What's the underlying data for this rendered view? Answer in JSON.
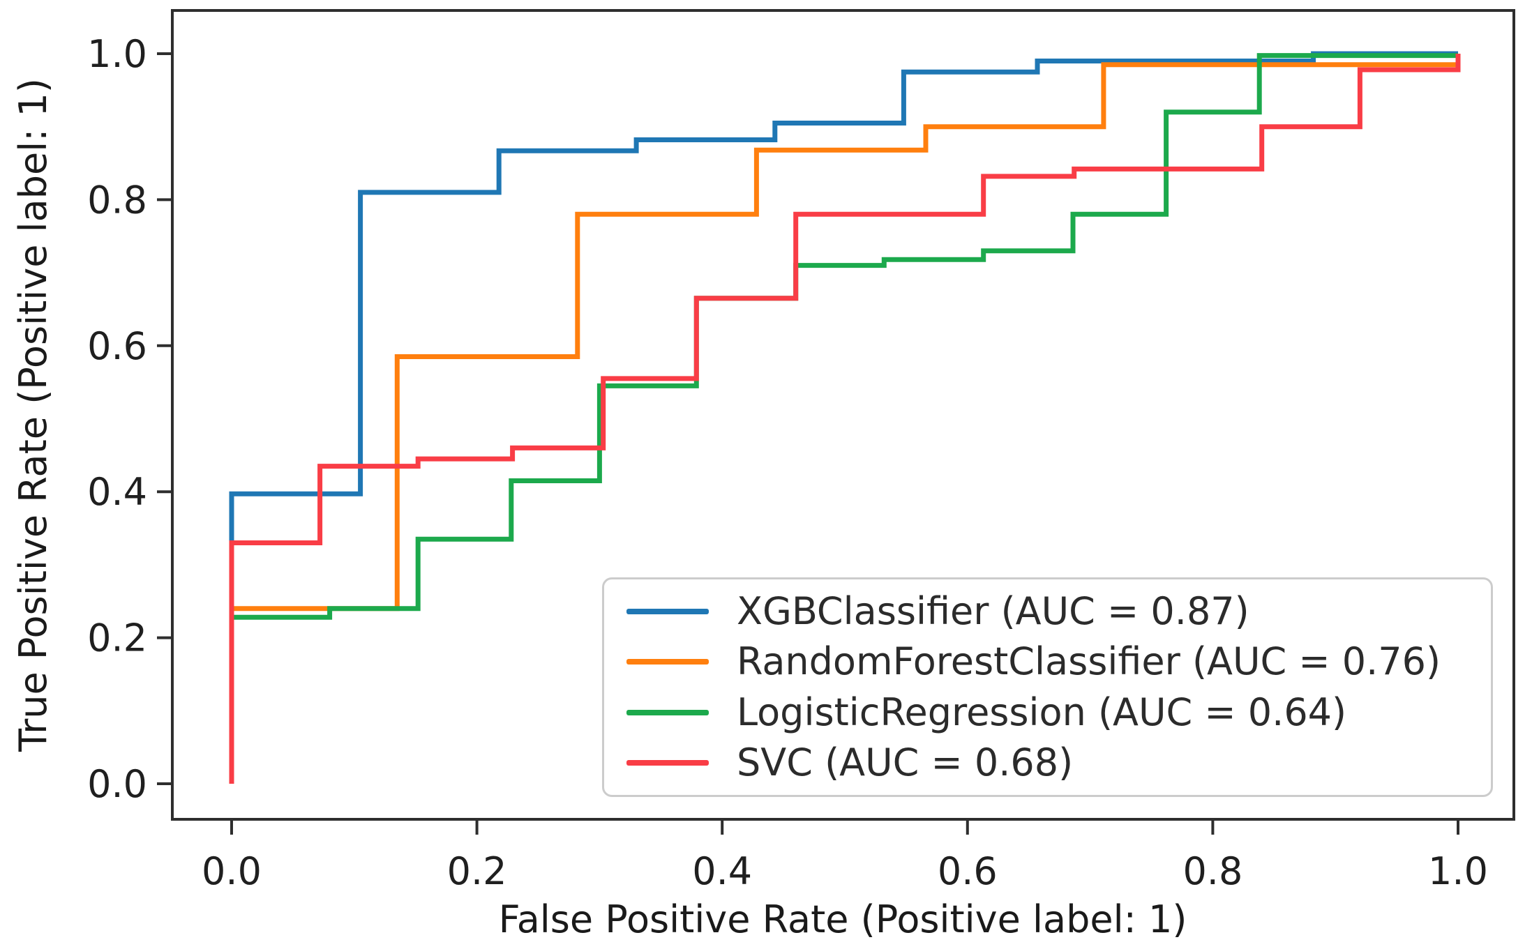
{
  "chart_data": {
    "type": "line",
    "subtype": "roc-step-curves",
    "title": "",
    "xlabel": "False Positive Rate (Positive label: 1)",
    "ylabel": "True Positive Rate (Positive label: 1)",
    "xlim": [
      -0.05,
      1.05
    ],
    "ylim": [
      -0.05,
      1.06
    ],
    "x_ticks": [
      0.0,
      0.2,
      0.4,
      0.6,
      0.8,
      1.0
    ],
    "y_ticks": [
      0.0,
      0.2,
      0.4,
      0.6,
      0.8,
      1.0
    ],
    "grid": false,
    "legend_position": "lower right",
    "frame_color": "#2e2e2e",
    "tick_label_color": "#1f1f1f",
    "series": [
      {
        "name": "XGBClassifier",
        "auc": 0.87,
        "label": "XGBClassifier (AUC = 0.87)",
        "color": "#1f77b4",
        "points": [
          [
            0,
            0
          ],
          [
            0,
            0.397
          ],
          [
            0.105,
            0.397
          ],
          [
            0.105,
            0.81
          ],
          [
            0.218,
            0.81
          ],
          [
            0.218,
            0.867
          ],
          [
            0.33,
            0.867
          ],
          [
            0.33,
            0.882
          ],
          [
            0.443,
            0.882
          ],
          [
            0.443,
            0.905
          ],
          [
            0.548,
            0.905
          ],
          [
            0.548,
            0.975
          ],
          [
            0.657,
            0.975
          ],
          [
            0.657,
            0.99
          ],
          [
            0.882,
            0.99
          ],
          [
            0.882,
            1.0
          ],
          [
            1.0,
            1.0
          ]
        ]
      },
      {
        "name": "RandomForestClassifier",
        "auc": 0.76,
        "label": "RandomForestClassifier (AUC = 0.76)",
        "color": "#ff7f0e",
        "points": [
          [
            0,
            0
          ],
          [
            0,
            0.24
          ],
          [
            0.135,
            0.24
          ],
          [
            0.135,
            0.585
          ],
          [
            0.282,
            0.585
          ],
          [
            0.282,
            0.78
          ],
          [
            0.428,
            0.78
          ],
          [
            0.428,
            0.868
          ],
          [
            0.566,
            0.868
          ],
          [
            0.566,
            0.9
          ],
          [
            0.711,
            0.9
          ],
          [
            0.711,
            0.985
          ],
          [
            1.0,
            0.985
          ],
          [
            1.0,
            1.0
          ]
        ]
      },
      {
        "name": "LogisticRegression",
        "auc": 0.64,
        "label": "LogisticRegression (AUC = 0.64)",
        "color": "#1ca94c",
        "points": [
          [
            0,
            0
          ],
          [
            0,
            0.228
          ],
          [
            0.08,
            0.228
          ],
          [
            0.08,
            0.24
          ],
          [
            0.152,
            0.24
          ],
          [
            0.152,
            0.335
          ],
          [
            0.228,
            0.335
          ],
          [
            0.228,
            0.415
          ],
          [
            0.3,
            0.415
          ],
          [
            0.3,
            0.545
          ],
          [
            0.379,
            0.545
          ],
          [
            0.379,
            0.665
          ],
          [
            0.46,
            0.665
          ],
          [
            0.46,
            0.71
          ],
          [
            0.532,
            0.71
          ],
          [
            0.532,
            0.718
          ],
          [
            0.613,
            0.718
          ],
          [
            0.613,
            0.73
          ],
          [
            0.686,
            0.73
          ],
          [
            0.686,
            0.78
          ],
          [
            0.762,
            0.78
          ],
          [
            0.762,
            0.92
          ],
          [
            0.838,
            0.92
          ],
          [
            0.838,
            0.9975
          ],
          [
            1.0,
            0.9975
          ],
          [
            1.0,
            1.0
          ]
        ]
      },
      {
        "name": "SVC",
        "auc": 0.68,
        "label": "SVC (AUC = 0.68)",
        "color": "#f93d46",
        "points": [
          [
            0,
            0
          ],
          [
            0,
            0.33
          ],
          [
            0.072,
            0.33
          ],
          [
            0.072,
            0.435
          ],
          [
            0.152,
            0.435
          ],
          [
            0.152,
            0.445
          ],
          [
            0.229,
            0.445
          ],
          [
            0.229,
            0.46
          ],
          [
            0.303,
            0.46
          ],
          [
            0.303,
            0.555
          ],
          [
            0.379,
            0.555
          ],
          [
            0.379,
            0.665
          ],
          [
            0.46,
            0.665
          ],
          [
            0.46,
            0.78
          ],
          [
            0.613,
            0.78
          ],
          [
            0.613,
            0.832
          ],
          [
            0.687,
            0.832
          ],
          [
            0.687,
            0.842
          ],
          [
            0.84,
            0.842
          ],
          [
            0.84,
            0.9
          ],
          [
            0.92,
            0.9
          ],
          [
            0.92,
            0.978
          ],
          [
            1.0,
            0.978
          ],
          [
            1.0,
            1.0
          ]
        ]
      }
    ]
  }
}
